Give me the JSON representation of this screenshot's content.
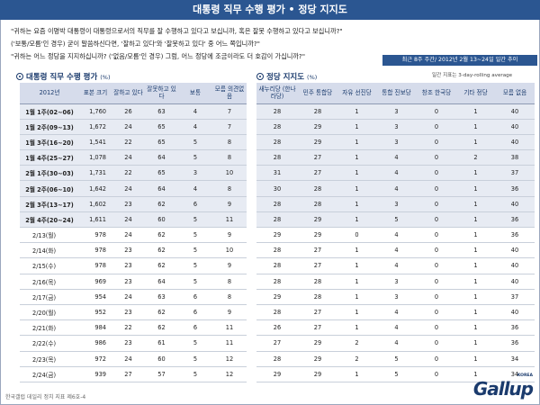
{
  "title": "대통령 직무 수행 평가 • 정당 지지도",
  "questions": [
    "\"귀하는 요즘 이명박 대통령이 대통령으로서의 직무를 잘 수행하고 있다고 보십니까, 혹은 잘못 수행하고 있다고 보십니까?\"",
    "('보통/모름'인 경우) 굳이 말씀하신다면, '잘하고 있다'와 '잘못하고 있다' 중 어느 쪽입니까?\"",
    "\"귀하는 어느 정당을 지지하십니까? ('없음/모름'인 경우) 그럼, 어느 정당에 조금이라도 더 호감이 가십니까?\""
  ],
  "period_label": "최근 8주 주간/ 2012년 2월 13~24일 일간 추이",
  "approval": {
    "title": "대통령 직무 수행 평가",
    "unit": "(%)",
    "headers": [
      "2012년",
      "표본 크기",
      "잘하고 있다",
      "잘못하고 있다",
      "보통",
      "모름 의견없음"
    ],
    "weekly": [
      [
        "1월 1주(02~06)",
        "1,760",
        "26",
        "63",
        "4",
        "7"
      ],
      [
        "1월 2주(09~13)",
        "1,672",
        "24",
        "65",
        "4",
        "7"
      ],
      [
        "1월 3주(16~20)",
        "1,541",
        "22",
        "65",
        "5",
        "8"
      ],
      [
        "1월 4주(25~27)",
        "1,078",
        "24",
        "64",
        "5",
        "8"
      ],
      [
        "2월 1주(30~03)",
        "1,731",
        "22",
        "65",
        "3",
        "10"
      ],
      [
        "2월 2주(06~10)",
        "1,642",
        "24",
        "64",
        "4",
        "8"
      ],
      [
        "2월 3주(13~17)",
        "1,602",
        "23",
        "62",
        "6",
        "9"
      ],
      [
        "2월 4주(20~24)",
        "1,611",
        "24",
        "60",
        "5",
        "11"
      ]
    ],
    "daily": [
      [
        "2/13(월)",
        "978",
        "24",
        "62",
        "5",
        "9"
      ],
      [
        "2/14(화)",
        "978",
        "23",
        "62",
        "5",
        "10"
      ],
      [
        "2/15(수)",
        "978",
        "23",
        "62",
        "5",
        "9"
      ],
      [
        "2/16(목)",
        "969",
        "23",
        "64",
        "5",
        "8"
      ],
      [
        "2/17(금)",
        "954",
        "24",
        "63",
        "6",
        "8"
      ],
      [
        "2/20(월)",
        "952",
        "23",
        "62",
        "6",
        "9"
      ],
      [
        "2/21(화)",
        "984",
        "22",
        "62",
        "6",
        "11"
      ],
      [
        "2/22(수)",
        "986",
        "23",
        "61",
        "5",
        "11"
      ],
      [
        "2/23(목)",
        "972",
        "24",
        "60",
        "5",
        "12"
      ],
      [
        "2/24(금)",
        "939",
        "27",
        "57",
        "5",
        "12"
      ]
    ]
  },
  "party": {
    "title": "정당 지지도",
    "unit": "(%)",
    "note": "일간 지표는 3-day-rolling average",
    "headers": [
      "새누리당 (한나라당)",
      "민주 통합당",
      "자유 선진당",
      "통합 진보당",
      "창조 한국당",
      "기타 정당",
      "모름 없음"
    ],
    "weekly": [
      [
        "28",
        "28",
        "1",
        "3",
        "0",
        "1",
        "40"
      ],
      [
        "28",
        "29",
        "1",
        "3",
        "0",
        "1",
        "40"
      ],
      [
        "28",
        "29",
        "1",
        "3",
        "0",
        "1",
        "40"
      ],
      [
        "28",
        "27",
        "1",
        "4",
        "0",
        "2",
        "38"
      ],
      [
        "31",
        "27",
        "1",
        "4",
        "0",
        "1",
        "37"
      ],
      [
        "30",
        "28",
        "1",
        "4",
        "0",
        "1",
        "36"
      ],
      [
        "28",
        "28",
        "1",
        "3",
        "0",
        "1",
        "40"
      ],
      [
        "28",
        "29",
        "1",
        "5",
        "0",
        "1",
        "36"
      ]
    ],
    "daily": [
      [
        "29",
        "29",
        "0",
        "4",
        "0",
        "1",
        "36"
      ],
      [
        "28",
        "27",
        "1",
        "4",
        "0",
        "1",
        "40"
      ],
      [
        "28",
        "27",
        "1",
        "4",
        "0",
        "1",
        "40"
      ],
      [
        "28",
        "28",
        "1",
        "3",
        "0",
        "1",
        "40"
      ],
      [
        "29",
        "28",
        "1",
        "3",
        "0",
        "1",
        "37"
      ],
      [
        "28",
        "27",
        "1",
        "4",
        "0",
        "1",
        "40"
      ],
      [
        "26",
        "27",
        "1",
        "4",
        "0",
        "1",
        "36"
      ],
      [
        "27",
        "29",
        "2",
        "4",
        "0",
        "1",
        "36"
      ],
      [
        "28",
        "29",
        "2",
        "5",
        "0",
        "1",
        "34"
      ],
      [
        "29",
        "29",
        "1",
        "5",
        "0",
        "1",
        "34"
      ]
    ]
  },
  "footer": "한국갤럽 데일리 정치 지표 제6호-4",
  "logo": {
    "text": "Gallup",
    "sub": "KOREA",
    "color": "#1b3b6d"
  },
  "colors": {
    "header_bar": "#2b5691",
    "table_header": "#d6dceb",
    "weekly_row": "#e7ebf3"
  }
}
